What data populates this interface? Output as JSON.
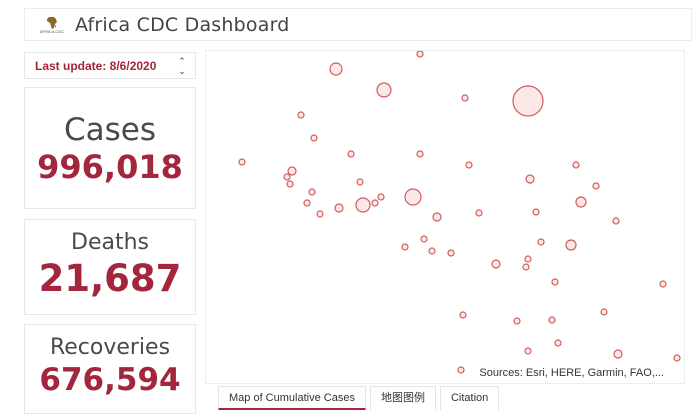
{
  "header": {
    "title": "Africa CDC Dashboard",
    "logo_text": "AFRICA CDC"
  },
  "update": {
    "label": "Last update: 8/6/2020"
  },
  "stats": {
    "cases": {
      "label": "Cases",
      "value": "996,018"
    },
    "deaths": {
      "label": "Deaths",
      "value": "21,687"
    },
    "recoveries": {
      "label": "Recoveries",
      "value": "676,594"
    }
  },
  "map": {
    "attribution": "Sources: Esri, HERE, Garmin, FAO,...",
    "marker_color": "#d45a5a",
    "marker_fill": "#fbe9e9"
  },
  "tabs": [
    {
      "label": "Map of Cumulative Cases"
    },
    {
      "label": "地图图例"
    },
    {
      "label": "Citation"
    }
  ],
  "colors": {
    "accent": "#a3263c"
  }
}
